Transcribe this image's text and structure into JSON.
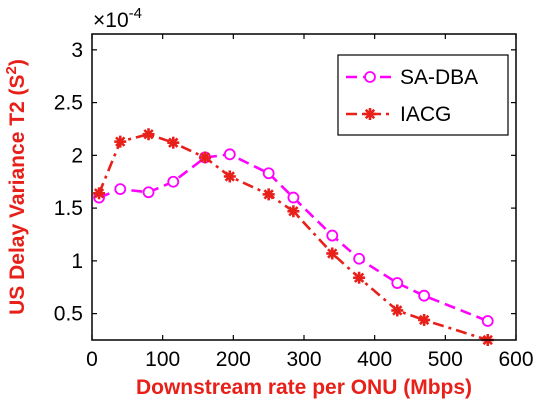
{
  "chart_data": {
    "type": "line",
    "title": "",
    "xlabel": "Downstream rate per ONU (Mbps)",
    "ylabel": "US Delay Variance T2 (S",
    "ylabel_sup": "2",
    "ylabel_close": ")",
    "y_multiplier": "×10",
    "y_multiplier_exp": "-4",
    "xlim": [
      0,
      600
    ],
    "ylim": [
      0.25,
      3.15
    ],
    "xticks": [
      0,
      100,
      200,
      300,
      400,
      500,
      600
    ],
    "yticks": [
      0.5,
      1,
      1.5,
      2,
      2.5,
      3
    ],
    "xtick_labels": [
      "0",
      "100",
      "200",
      "300",
      "400",
      "500",
      "600"
    ],
    "ytick_labels": [
      "0.5",
      "1",
      "1.5",
      "2",
      "2.5",
      "3"
    ],
    "grid": false,
    "legend_position": "top-right",
    "series": [
      {
        "name": "SA-DBA",
        "color": "#ff00ff",
        "line_style": "dashed",
        "marker": "open-circle",
        "x": [
          10,
          40,
          80,
          115,
          160,
          195,
          250,
          285,
          340,
          378,
          432,
          470,
          560
        ],
        "y": [
          1.6,
          1.68,
          1.65,
          1.75,
          1.98,
          2.01,
          1.83,
          1.6,
          1.24,
          1.02,
          0.79,
          0.67,
          0.43
        ]
      },
      {
        "name": "IACG",
        "color": "#e8201a",
        "line_style": "dash-dot",
        "marker": "asterisk",
        "x": [
          10,
          40,
          80,
          115,
          160,
          195,
          250,
          285,
          340,
          378,
          432,
          470,
          560
        ],
        "y": [
          1.64,
          2.13,
          2.2,
          2.12,
          1.98,
          1.8,
          1.63,
          1.47,
          1.07,
          0.84,
          0.53,
          0.44,
          0.25
        ]
      }
    ]
  }
}
